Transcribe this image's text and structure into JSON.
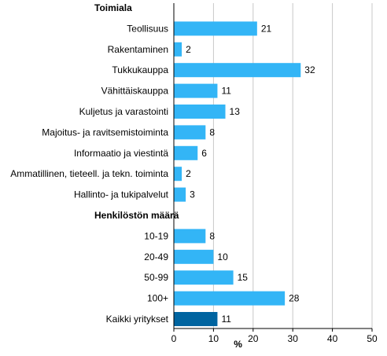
{
  "chart_data": {
    "type": "bar",
    "orientation": "horizontal",
    "xlabel": "%",
    "xlim": [
      0,
      50
    ],
    "xticks": [
      0,
      10,
      20,
      30,
      40,
      50
    ],
    "grid": true,
    "colors": {
      "default": "#33b5f6",
      "highlight": "#0064a0",
      "grid": "#c8c8c8"
    },
    "groups": [
      {
        "header": "Toimiala",
        "items": [
          {
            "label": "Teollisuus",
            "value": 21
          },
          {
            "label": "Rakentaminen",
            "value": 2
          },
          {
            "label": "Tukkukauppa",
            "value": 32
          },
          {
            "label": "Vähittäiskauppa",
            "value": 11
          },
          {
            "label": "Kuljetus ja varastointi",
            "value": 13
          },
          {
            "label": "Majoitus- ja ravitsemistoiminta",
            "value": 8
          },
          {
            "label": "Informaatio ja viestintä",
            "value": 6
          },
          {
            "label": "Ammatillinen, tieteell. ja tekn. toiminta",
            "value": 2
          },
          {
            "label": "Hallinto- ja tukipalvelut",
            "value": 3
          }
        ]
      },
      {
        "header": "Henkilöstön määrä",
        "items": [
          {
            "label": "10-19",
            "value": 8
          },
          {
            "label": "20-49",
            "value": 10
          },
          {
            "label": "50-99",
            "value": 15
          },
          {
            "label": "100+",
            "value": 28
          },
          {
            "label": "Kaikki yritykset",
            "value": 11,
            "highlight": true
          }
        ]
      }
    ]
  }
}
